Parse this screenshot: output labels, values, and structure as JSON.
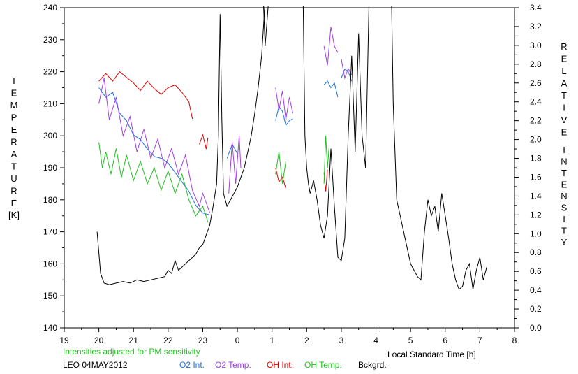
{
  "chart_data": {
    "type": "line",
    "title": "",
    "xlabel": "Local Standard Time [h]",
    "ylabel_left": "TEMPERATURE [K]",
    "ylabel_right": "RELATIVE INTENSITY",
    "left_label_letters": [
      "T",
      "E",
      "M",
      "P",
      "E",
      "R",
      "A",
      "T",
      "U",
      "R",
      "E"
    ],
    "left_label_unit": "[K]",
    "right_label_word1": [
      "R",
      "E",
      "L",
      "A",
      "T",
      "I",
      "V",
      "E"
    ],
    "right_label_word2": [
      "I",
      "N",
      "T",
      "E",
      "N",
      "S",
      "I",
      "T",
      "Y"
    ],
    "x_ticks": [
      "19",
      "20",
      "21",
      "22",
      "23",
      "0",
      "1",
      "2",
      "3",
      "4",
      "5",
      "6",
      "7",
      "8"
    ],
    "y_left_ticks": [
      "140",
      "150",
      "160",
      "170",
      "180",
      "190",
      "200",
      "210",
      "220",
      "230",
      "240"
    ],
    "y_right_ticks": [
      "0.0",
      "0.2",
      "0.4",
      "0.6",
      "0.8",
      "1.0",
      "1.2",
      "1.4",
      "1.6",
      "1.8",
      "2.0",
      "2.2",
      "2.4",
      "2.6",
      "2.8",
      "3.0",
      "3.2",
      "3.4"
    ],
    "xlim": [
      19,
      32
    ],
    "ylim_left": [
      140,
      240
    ],
    "ylim_right": [
      0,
      3.4
    ],
    "grid": false,
    "note": "Intensities adjusted for PM sensitivity",
    "station": "LEO 04MAY2012",
    "legend": [
      {
        "label": "O2 Int.",
        "color": "#1a6fe0"
      },
      {
        "label": "O2 Temp.",
        "color": "#a040e0"
      },
      {
        "label": "OH Int.",
        "color": "#e00000"
      },
      {
        "label": "OH Temp.",
        "color": "#20c020"
      },
      {
        "label": "Bckgrd.",
        "color": "#000000"
      }
    ],
    "series": [
      {
        "name": "OH Int.",
        "axis": "right",
        "color": "#e00000",
        "segments": [
          [
            [
              20.0,
              2.62
            ],
            [
              20.2,
              2.7
            ],
            [
              20.4,
              2.62
            ],
            [
              20.6,
              2.72
            ],
            [
              20.8,
              2.66
            ],
            [
              21.0,
              2.6
            ],
            [
              21.2,
              2.52
            ],
            [
              21.4,
              2.62
            ],
            [
              21.6,
              2.54
            ],
            [
              21.8,
              2.48
            ],
            [
              22.0,
              2.55
            ],
            [
              22.2,
              2.58
            ],
            [
              22.4,
              2.5
            ],
            [
              22.6,
              2.4
            ],
            [
              22.7,
              2.22
            ]
          ],
          [
            [
              22.9,
              1.95
            ],
            [
              23.0,
              2.05
            ],
            [
              23.1,
              1.9
            ],
            [
              23.15,
              2.02
            ]
          ],
          [
            [
              25.1,
              1.7
            ],
            [
              25.2,
              1.55
            ],
            [
              25.3,
              1.6
            ],
            [
              25.4,
              1.48
            ]
          ],
          [
            [
              26.5,
              1.65
            ],
            [
              26.55,
              1.45
            ],
            [
              26.6,
              1.68
            ]
          ]
        ]
      },
      {
        "name": "O2 Int.",
        "axis": "right",
        "color": "#1a6fe0",
        "segments": [
          [
            [
              20.0,
              2.55
            ],
            [
              20.2,
              2.45
            ],
            [
              20.4,
              2.5
            ],
            [
              20.6,
              2.28
            ],
            [
              20.8,
              2.2
            ],
            [
              21.0,
              2.05
            ],
            [
              21.2,
              2.0
            ],
            [
              21.4,
              1.9
            ],
            [
              21.6,
              1.82
            ],
            [
              21.8,
              1.8
            ],
            [
              22.0,
              1.75
            ],
            [
              22.2,
              1.65
            ],
            [
              22.4,
              1.55
            ],
            [
              22.6,
              1.45
            ],
            [
              22.8,
              1.3
            ],
            [
              23.0,
              1.22
            ],
            [
              23.2,
              1.2
            ]
          ],
          [
            [
              23.7,
              1.8
            ],
            [
              23.85,
              1.95
            ],
            [
              24.0,
              1.85
            ]
          ],
          [
            [
              25.1,
              2.2
            ],
            [
              25.2,
              2.35
            ],
            [
              25.3,
              2.3
            ],
            [
              25.4,
              2.15
            ],
            [
              25.5,
              2.2
            ],
            [
              25.6,
              2.22
            ]
          ],
          [
            [
              26.5,
              2.58
            ],
            [
              26.6,
              2.62
            ],
            [
              26.7,
              2.55
            ],
            [
              26.8,
              2.6
            ],
            [
              26.9,
              2.45
            ]
          ],
          [
            [
              27.0,
              2.65
            ],
            [
              27.1,
              2.75
            ],
            [
              27.2,
              2.72
            ],
            [
              27.3,
              2.62
            ]
          ]
        ]
      },
      {
        "name": "O2 Temp.",
        "axis": "left",
        "color": "#a040e0",
        "segments": [
          [
            [
              20.0,
              210
            ],
            [
              20.15,
              218
            ],
            [
              20.3,
              205
            ],
            [
              20.5,
              212
            ],
            [
              20.7,
              200
            ],
            [
              20.9,
              206
            ],
            [
              21.1,
              195
            ],
            [
              21.3,
              202
            ],
            [
              21.5,
              193
            ],
            [
              21.7,
              199
            ],
            [
              21.9,
              190
            ],
            [
              22.1,
              196
            ],
            [
              22.3,
              188
            ],
            [
              22.5,
              194
            ],
            [
              22.7,
              183
            ],
            [
              22.9,
              178
            ],
            [
              23.0,
              182
            ],
            [
              23.2,
              176
            ]
          ],
          [
            [
              23.75,
              182
            ],
            [
              23.85,
              198
            ],
            [
              23.95,
              185
            ],
            [
              24.05,
              200
            ],
            [
              24.1,
              190
            ]
          ],
          [
            [
              25.1,
              215
            ],
            [
              25.2,
              208
            ],
            [
              25.3,
              214
            ],
            [
              25.4,
              205
            ],
            [
              25.5,
              212
            ],
            [
              25.6,
              207
            ]
          ],
          [
            [
              26.5,
              228
            ],
            [
              26.6,
              222
            ],
            [
              26.7,
              234
            ],
            [
              26.8,
              228
            ],
            [
              26.9,
              226
            ]
          ],
          [
            [
              27.0,
              224
            ],
            [
              27.1,
              218
            ],
            [
              27.2,
              221
            ],
            [
              27.3,
              219
            ]
          ]
        ]
      },
      {
        "name": "OH Temp.",
        "axis": "left",
        "color": "#20c020",
        "segments": [
          [
            [
              20.0,
              198
            ],
            [
              20.1,
              190
            ],
            [
              20.2,
              195
            ],
            [
              20.35,
              188
            ],
            [
              20.5,
              196
            ],
            [
              20.65,
              187
            ],
            [
              20.8,
              194
            ],
            [
              21.0,
              186
            ],
            [
              21.2,
              192
            ],
            [
              21.4,
              185
            ],
            [
              21.6,
              190
            ],
            [
              21.8,
              183
            ],
            [
              22.0,
              189
            ],
            [
              22.2,
              182
            ],
            [
              22.4,
              188
            ],
            [
              22.6,
              180
            ],
            [
              22.8,
              175
            ],
            [
              23.0,
              178
            ],
            [
              23.15,
              173
            ]
          ],
          [
            [
              25.1,
              188
            ],
            [
              25.2,
              195
            ],
            [
              25.3,
              185
            ],
            [
              25.4,
              192
            ]
          ],
          [
            [
              26.5,
              185
            ],
            [
              26.55,
              200
            ],
            [
              26.6,
              190
            ],
            [
              26.65,
              197
            ]
          ]
        ]
      },
      {
        "name": "Bckgrd.",
        "axis": "left",
        "color": "#000000",
        "segments": [
          [
            [
              19.95,
              170
            ],
            [
              20.05,
              157
            ],
            [
              20.15,
              154
            ],
            [
              20.3,
              153.5
            ],
            [
              20.5,
              154
            ],
            [
              20.7,
              154.5
            ],
            [
              20.9,
              154
            ],
            [
              21.1,
              155
            ],
            [
              21.3,
              154.5
            ],
            [
              21.5,
              155
            ],
            [
              21.7,
              155.5
            ],
            [
              21.9,
              156
            ],
            [
              22.0,
              158
            ],
            [
              22.1,
              157
            ],
            [
              22.2,
              161
            ],
            [
              22.3,
              158
            ],
            [
              22.5,
              160
            ],
            [
              22.7,
              162
            ],
            [
              22.8,
              163
            ],
            [
              22.9,
              165
            ],
            [
              23.0,
              166
            ],
            [
              23.1,
              169
            ],
            [
              23.2,
              172
            ],
            [
              23.3,
              178
            ],
            [
              23.4,
              185
            ],
            [
              23.45,
              200
            ],
            [
              23.5,
              238
            ],
            [
              23.55,
              205
            ],
            [
              23.6,
              182
            ],
            [
              23.7,
              178
            ],
            [
              23.8,
              180
            ],
            [
              23.9,
              182
            ],
            [
              24.0,
              184
            ],
            [
              24.1,
              187
            ],
            [
              24.2,
              190
            ],
            [
              24.3,
              195
            ],
            [
              24.4,
              200
            ],
            [
              24.5,
              207
            ],
            [
              24.6,
              215
            ],
            [
              24.7,
              225
            ],
            [
              24.8,
              242
            ]
          ],
          [
            [
              24.75,
              242
            ],
            [
              24.8,
              228
            ],
            [
              24.9,
              242
            ]
          ],
          [
            [
              25.9,
              242
            ],
            [
              25.95,
              200
            ],
            [
              26.0,
              190
            ],
            [
              26.05,
              185
            ],
            [
              26.1,
              182
            ],
            [
              26.2,
              186
            ],
            [
              26.3,
              180
            ],
            [
              26.4,
              172
            ],
            [
              26.5,
              168
            ],
            [
              26.6,
              175
            ],
            [
              26.7,
              196
            ],
            [
              26.8,
              178
            ],
            [
              26.9,
              162
            ],
            [
              27.0,
              161
            ],
            [
              27.1,
              168
            ],
            [
              27.2,
              200
            ],
            [
              27.3,
              225
            ],
            [
              27.4,
              195
            ],
            [
              27.5,
              232
            ],
            [
              27.6,
              200
            ],
            [
              27.7,
              190
            ],
            [
              27.8,
              242
            ]
          ],
          [
            [
              28.45,
              242
            ],
            [
              28.5,
              210
            ],
            [
              28.6,
              180
            ],
            [
              28.7,
              175
            ],
            [
              28.8,
              170
            ],
            [
              28.9,
              165
            ],
            [
              29.0,
              160
            ],
            [
              29.1,
              158
            ],
            [
              29.2,
              156
            ],
            [
              29.3,
              155
            ],
            [
              29.4,
              170
            ],
            [
              29.5,
              180
            ],
            [
              29.6,
              175
            ],
            [
              29.7,
              178
            ],
            [
              29.8,
              170
            ],
            [
              29.9,
              182
            ],
            [
              30.0,
              175
            ],
            [
              30.1,
              168
            ],
            [
              30.2,
              160
            ],
            [
              30.3,
              155
            ],
            [
              30.4,
              152
            ],
            [
              30.5,
              153
            ],
            [
              30.6,
              158
            ],
            [
              30.7,
              160
            ],
            [
              30.8,
              152
            ],
            [
              30.9,
              158
            ],
            [
              31.0,
              162
            ],
            [
              31.1,
              155
            ],
            [
              31.2,
              159
            ]
          ]
        ]
      }
    ]
  }
}
